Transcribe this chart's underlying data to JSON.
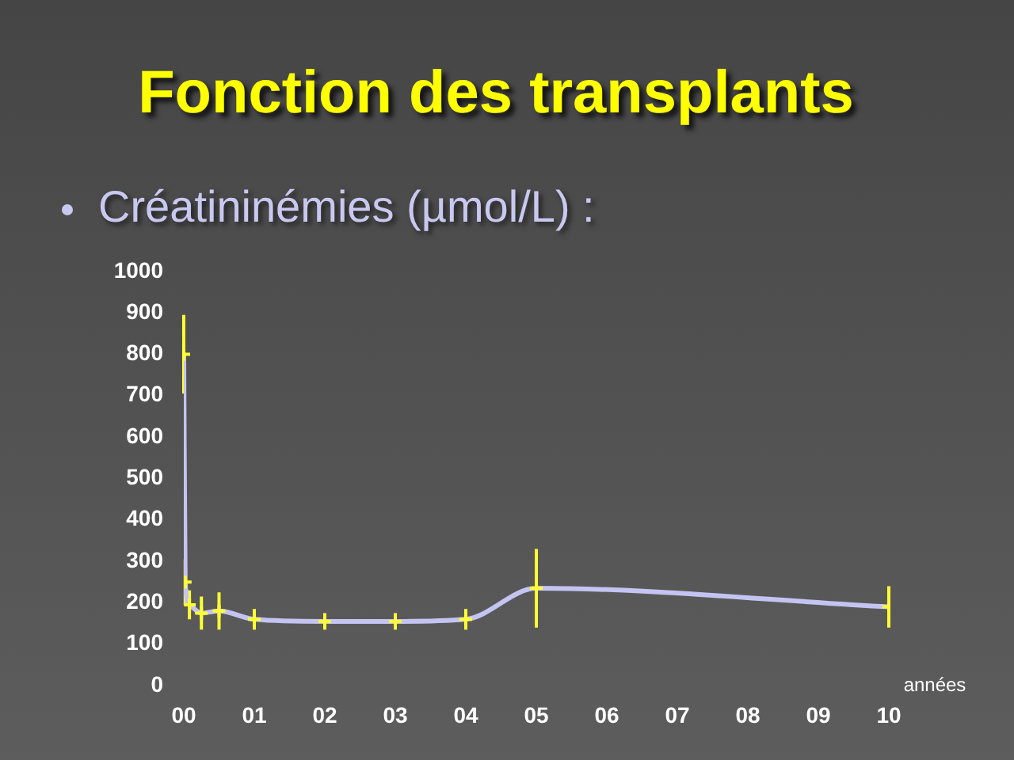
{
  "chart_data": {
    "type": "line",
    "title": "Fonction des transplants",
    "subtitle": "Créatininémies (µmol/L) :",
    "xlabel": "années",
    "xlim": [
      0,
      10
    ],
    "xticks": [
      {
        "value": 0,
        "label": "00"
      },
      {
        "value": 1,
        "label": "01"
      },
      {
        "value": 2,
        "label": "02"
      },
      {
        "value": 3,
        "label": "03"
      },
      {
        "value": 4,
        "label": "04"
      },
      {
        "value": 5,
        "label": "05"
      },
      {
        "value": 6,
        "label": "06"
      },
      {
        "value": 7,
        "label": "07"
      },
      {
        "value": 8,
        "label": "08"
      },
      {
        "value": 9,
        "label": "09"
      },
      10
    ],
    "ylim": [
      0,
      1000
    ],
    "yticks": [
      0,
      100,
      200,
      300,
      400,
      500,
      600,
      700,
      800,
      900,
      1000
    ],
    "x": [
      0,
      0.02,
      0.08,
      0.25,
      0.5,
      1,
      2,
      3,
      4,
      5,
      10
    ],
    "series": [
      {
        "type": "line",
        "color": "#c4c4f2",
        "marker": "none",
        "values": [
          800,
          250,
          195,
          175,
          180,
          160,
          155,
          155,
          160,
          235,
          190
        ]
      },
      {
        "type": "scatter",
        "color": "#ffff33",
        "marker": "cross",
        "values": [
          800,
          250,
          195,
          175,
          180,
          160,
          155,
          155,
          160,
          235,
          190
        ],
        "errors": [
          95,
          55,
          35,
          40,
          45,
          25,
          20,
          20,
          25,
          95,
          50
        ]
      }
    ]
  }
}
